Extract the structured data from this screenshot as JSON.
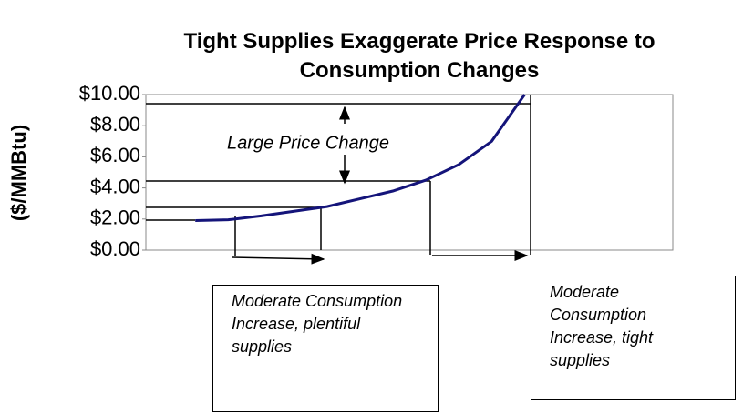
{
  "chart_data": {
    "type": "line",
    "title": "Tight Supplies Exaggerate Price Response to Consumption Changes",
    "y_label": "($/MMBtu)",
    "categories": [
      null,
      null,
      null,
      null,
      null,
      null,
      null,
      null,
      null,
      null,
      null,
      null,
      null,
      null,
      null,
      null
    ],
    "series": [
      {
        "name": null,
        "color": "#14147a",
        "values": [
          null,
          1.9,
          1.95,
          2.2,
          2.5,
          2.8,
          3.3,
          3.8,
          4.5,
          5.5,
          7.0,
          10.0,
          null,
          null,
          null,
          null
        ]
      }
    ],
    "ylim": [
      0,
      10
    ],
    "yticks": [
      {
        "value": 0,
        "label": "$0.00"
      },
      {
        "value": 2,
        "label": "$2.00"
      },
      {
        "value": 4,
        "label": "$4.00"
      },
      {
        "value": 6,
        "label": "$6.00"
      },
      {
        "value": 8,
        "label": "$8.00"
      },
      {
        "value": 10,
        "label": "$10.00"
      }
    ],
    "grid": false,
    "annotations": [
      "Large Price Change",
      "Moderate Consumption Increase, plentiful supplies",
      "Moderate Consumption Increase, tight supplies"
    ]
  }
}
